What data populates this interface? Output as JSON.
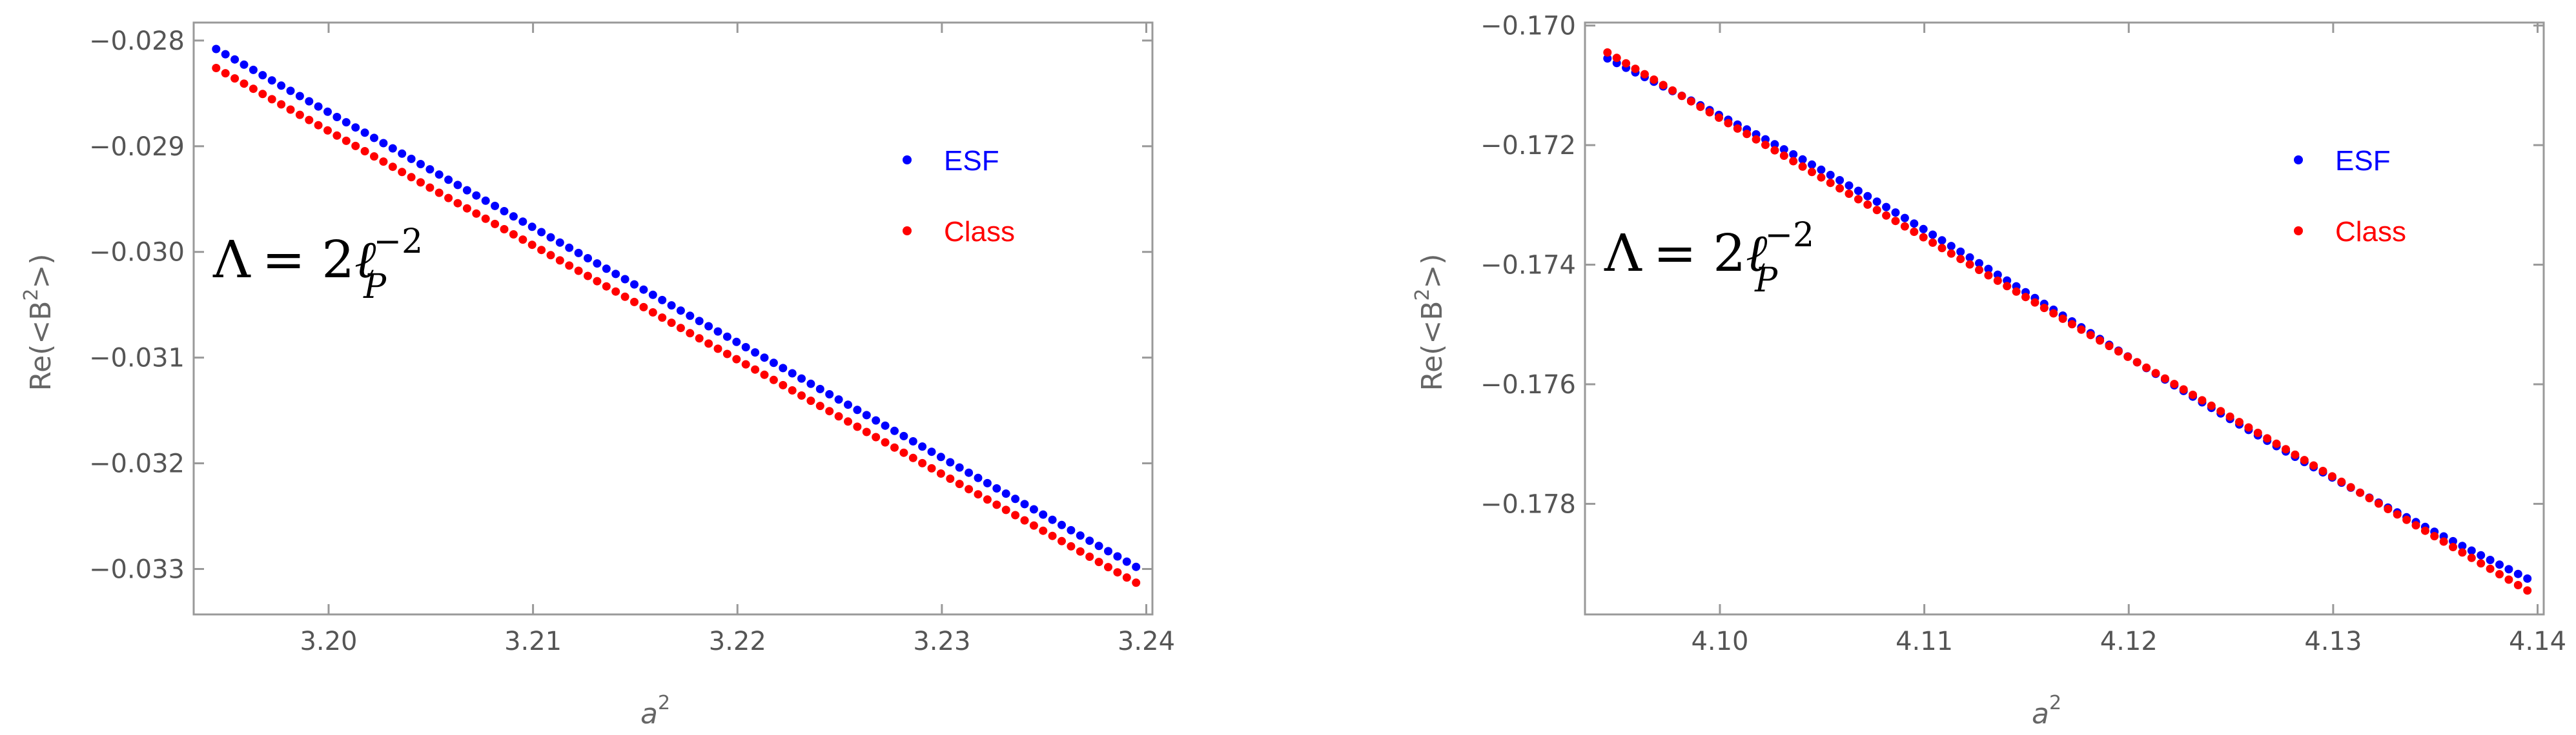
{
  "colors": {
    "esf": "#0000ff",
    "class": "#ff0000",
    "frame": "#999999",
    "tick_text": "#555555",
    "axis_text": "#666666"
  },
  "chart_data": [
    {
      "type": "scatter",
      "title": "",
      "xlabel": {
        "base": "a",
        "sup": "2"
      },
      "ylabel": {
        "pre": "Re(<B",
        "sup": "2",
        "post": ">)"
      },
      "xlim": [
        3.1934,
        3.2403
      ],
      "ylim": [
        -0.03343,
        -0.02783
      ],
      "xticks": [
        3.2,
        3.21,
        3.22,
        3.23,
        3.24
      ],
      "xtick_labels": [
        "3.20",
        "3.21",
        "3.22",
        "3.23",
        "3.24"
      ],
      "yticks": [
        -0.028,
        -0.029,
        -0.03,
        -0.031,
        -0.032,
        -0.033
      ],
      "ytick_labels": [
        "−0.028",
        "−0.029",
        "−0.030",
        "−0.031",
        "−0.032",
        "−0.033"
      ],
      "annotation": {
        "lambda": "Λ",
        "eq": "= 2",
        "ell": "ℓ",
        "sub": "P",
        "sup": "−2"
      },
      "legend": {
        "position": "right",
        "entries": [
          "ESF",
          "Class"
        ]
      },
      "series": [
        {
          "name": "ESF",
          "color": "#0000ff",
          "x_start": 3.1945,
          "x_end": 3.2395,
          "n": 100,
          "y_start": -0.02808,
          "y_end": -0.03298,
          "wiggle": 0
        },
        {
          "name": "Class",
          "color": "#ff0000",
          "x_start": 3.1945,
          "x_end": 3.2395,
          "n": 100,
          "y_start": -0.02826,
          "y_end": -0.03313,
          "wiggle": 0
        }
      ]
    },
    {
      "type": "scatter",
      "title": "",
      "xlabel": {
        "base": "a",
        "sup": "2"
      },
      "ylabel": {
        "pre": "Re(<B",
        "sup": "2",
        "post": ">)"
      },
      "xlim": [
        4.0934,
        4.1403
      ],
      "ylim": [
        -0.17985,
        -0.16995
      ],
      "xticks": [
        4.1,
        4.11,
        4.12,
        4.13,
        4.14
      ],
      "xtick_labels": [
        "4.10",
        "4.11",
        "4.12",
        "4.13",
        "4.14"
      ],
      "yticks": [
        -0.17,
        -0.172,
        -0.174,
        -0.176,
        -0.178
      ],
      "ytick_labels": [
        "−0.170",
        "−0.172",
        "−0.174",
        "−0.176",
        "−0.178"
      ],
      "annotation": {
        "lambda": "Λ",
        "eq": "= 2",
        "ell": "ℓ",
        "sub": "P",
        "sup": "−2"
      },
      "legend": {
        "position": "right",
        "entries": [
          "ESF",
          "Class"
        ]
      },
      "series": [
        {
          "name": "ESF",
          "color": "#0000ff",
          "x_start": 4.0945,
          "x_end": 4.1395,
          "n": 100,
          "y_start": -0.17055,
          "y_end": -0.17925,
          "wiggle": 0.00016
        },
        {
          "name": "Class",
          "color": "#ff0000",
          "x_start": 4.0945,
          "x_end": 4.1395,
          "n": 100,
          "y_start": -0.17045,
          "y_end": -0.17945,
          "wiggle": 0
        }
      ]
    }
  ]
}
